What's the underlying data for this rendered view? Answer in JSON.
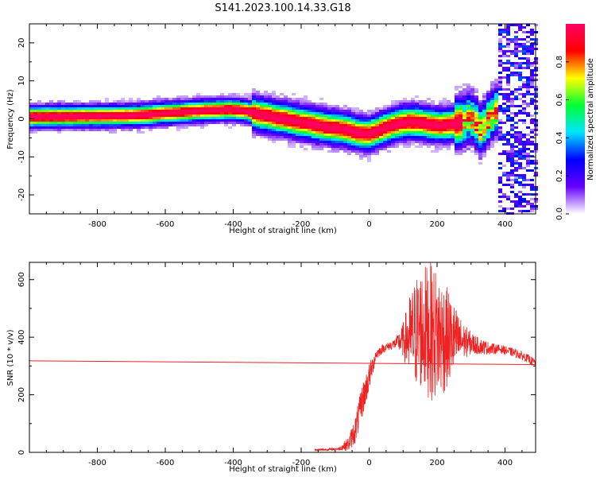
{
  "title": "S141.2023.100.14.33.G18",
  "chart_data": [
    {
      "type": "heatmap",
      "name": "spectrogram",
      "xlabel": "Height of straight line (km)",
      "ylabel": "Frequency (Hz)",
      "xlim": [
        -1000,
        490
      ],
      "ylim": [
        -25,
        25
      ],
      "xticks": [
        -800,
        -600,
        -400,
        -200,
        0,
        200,
        400
      ],
      "yticks": [
        -20,
        -10,
        0,
        10,
        20
      ],
      "grid": false,
      "colorbar": {
        "label": "Normalized spectral amplitude",
        "range": [
          0.0,
          1.0
        ],
        "ticks": [
          "0.0",
          "0.2",
          "0.4",
          "0.6",
          "0.8"
        ],
        "colormap": [
          "#ffffff",
          "#6600ff",
          "#0000ff",
          "#00e5ff",
          "#00ff33",
          "#ffff00",
          "#ff0000",
          "#ff0066"
        ]
      },
      "ridge": {
        "x": [
          -1000,
          -900,
          -800,
          -720,
          -660,
          -600,
          -540,
          -500,
          -450,
          -400,
          -360,
          -330,
          -300,
          -270,
          -240,
          -210,
          -180,
          -150,
          -120,
          -90,
          -60,
          -30,
          0,
          30,
          60,
          90,
          120,
          150,
          180,
          210,
          240,
          270,
          300,
          330,
          360,
          390,
          410
        ],
        "y": [
          0.5,
          0.6,
          0.7,
          0.8,
          1.0,
          1.5,
          1.8,
          2.1,
          2.3,
          2.4,
          2.0,
          1.2,
          0.8,
          0.2,
          -0.2,
          -0.8,
          -1.2,
          -1.8,
          -2.2,
          -2.5,
          -3.0,
          -3.8,
          -4.0,
          -3.0,
          -2.0,
          -1.2,
          -0.8,
          -1.0,
          -1.5,
          -1.8,
          -1.5,
          -1.0,
          0.5,
          -3.0,
          1.0,
          3.0,
          -5.0
        ]
      }
    },
    {
      "type": "line",
      "name": "snr",
      "xlabel": "Height of straight line (km)",
      "ylabel": "SNR (10 * v/v)",
      "xlim": [
        -1000,
        490
      ],
      "ylim": [
        0,
        660
      ],
      "xticks": [
        -800,
        -600,
        -400,
        -200,
        0,
        200,
        400
      ],
      "yticks": [
        0,
        200,
        400,
        600
      ],
      "grid": false,
      "series_color": "#ee2222",
      "trend_line": {
        "x": [
          -1000,
          490
        ],
        "y": [
          318,
          305
        ]
      },
      "envelope": {
        "x": [
          -160,
          -120,
          -90,
          -60,
          -40,
          -20,
          0,
          20,
          40,
          60,
          80,
          100,
          120,
          140,
          160,
          180,
          200,
          220,
          240,
          260,
          280,
          300,
          320,
          340,
          360,
          380,
          400,
          430,
          460,
          490
        ],
        "y": [
          8,
          10,
          12,
          30,
          80,
          180,
          260,
          340,
          360,
          370,
          380,
          390,
          400,
          420,
          430,
          420,
          410,
          400,
          395,
          390,
          385,
          380,
          370,
          365,
          360,
          360,
          355,
          345,
          330,
          310
        ],
        "spread": [
          3,
          4,
          5,
          25,
          50,
          60,
          50,
          20,
          15,
          15,
          20,
          60,
          150,
          200,
          220,
          240,
          230,
          200,
          150,
          100,
          60,
          40,
          30,
          25,
          20,
          15,
          15,
          15,
          15,
          15
        ]
      }
    }
  ]
}
